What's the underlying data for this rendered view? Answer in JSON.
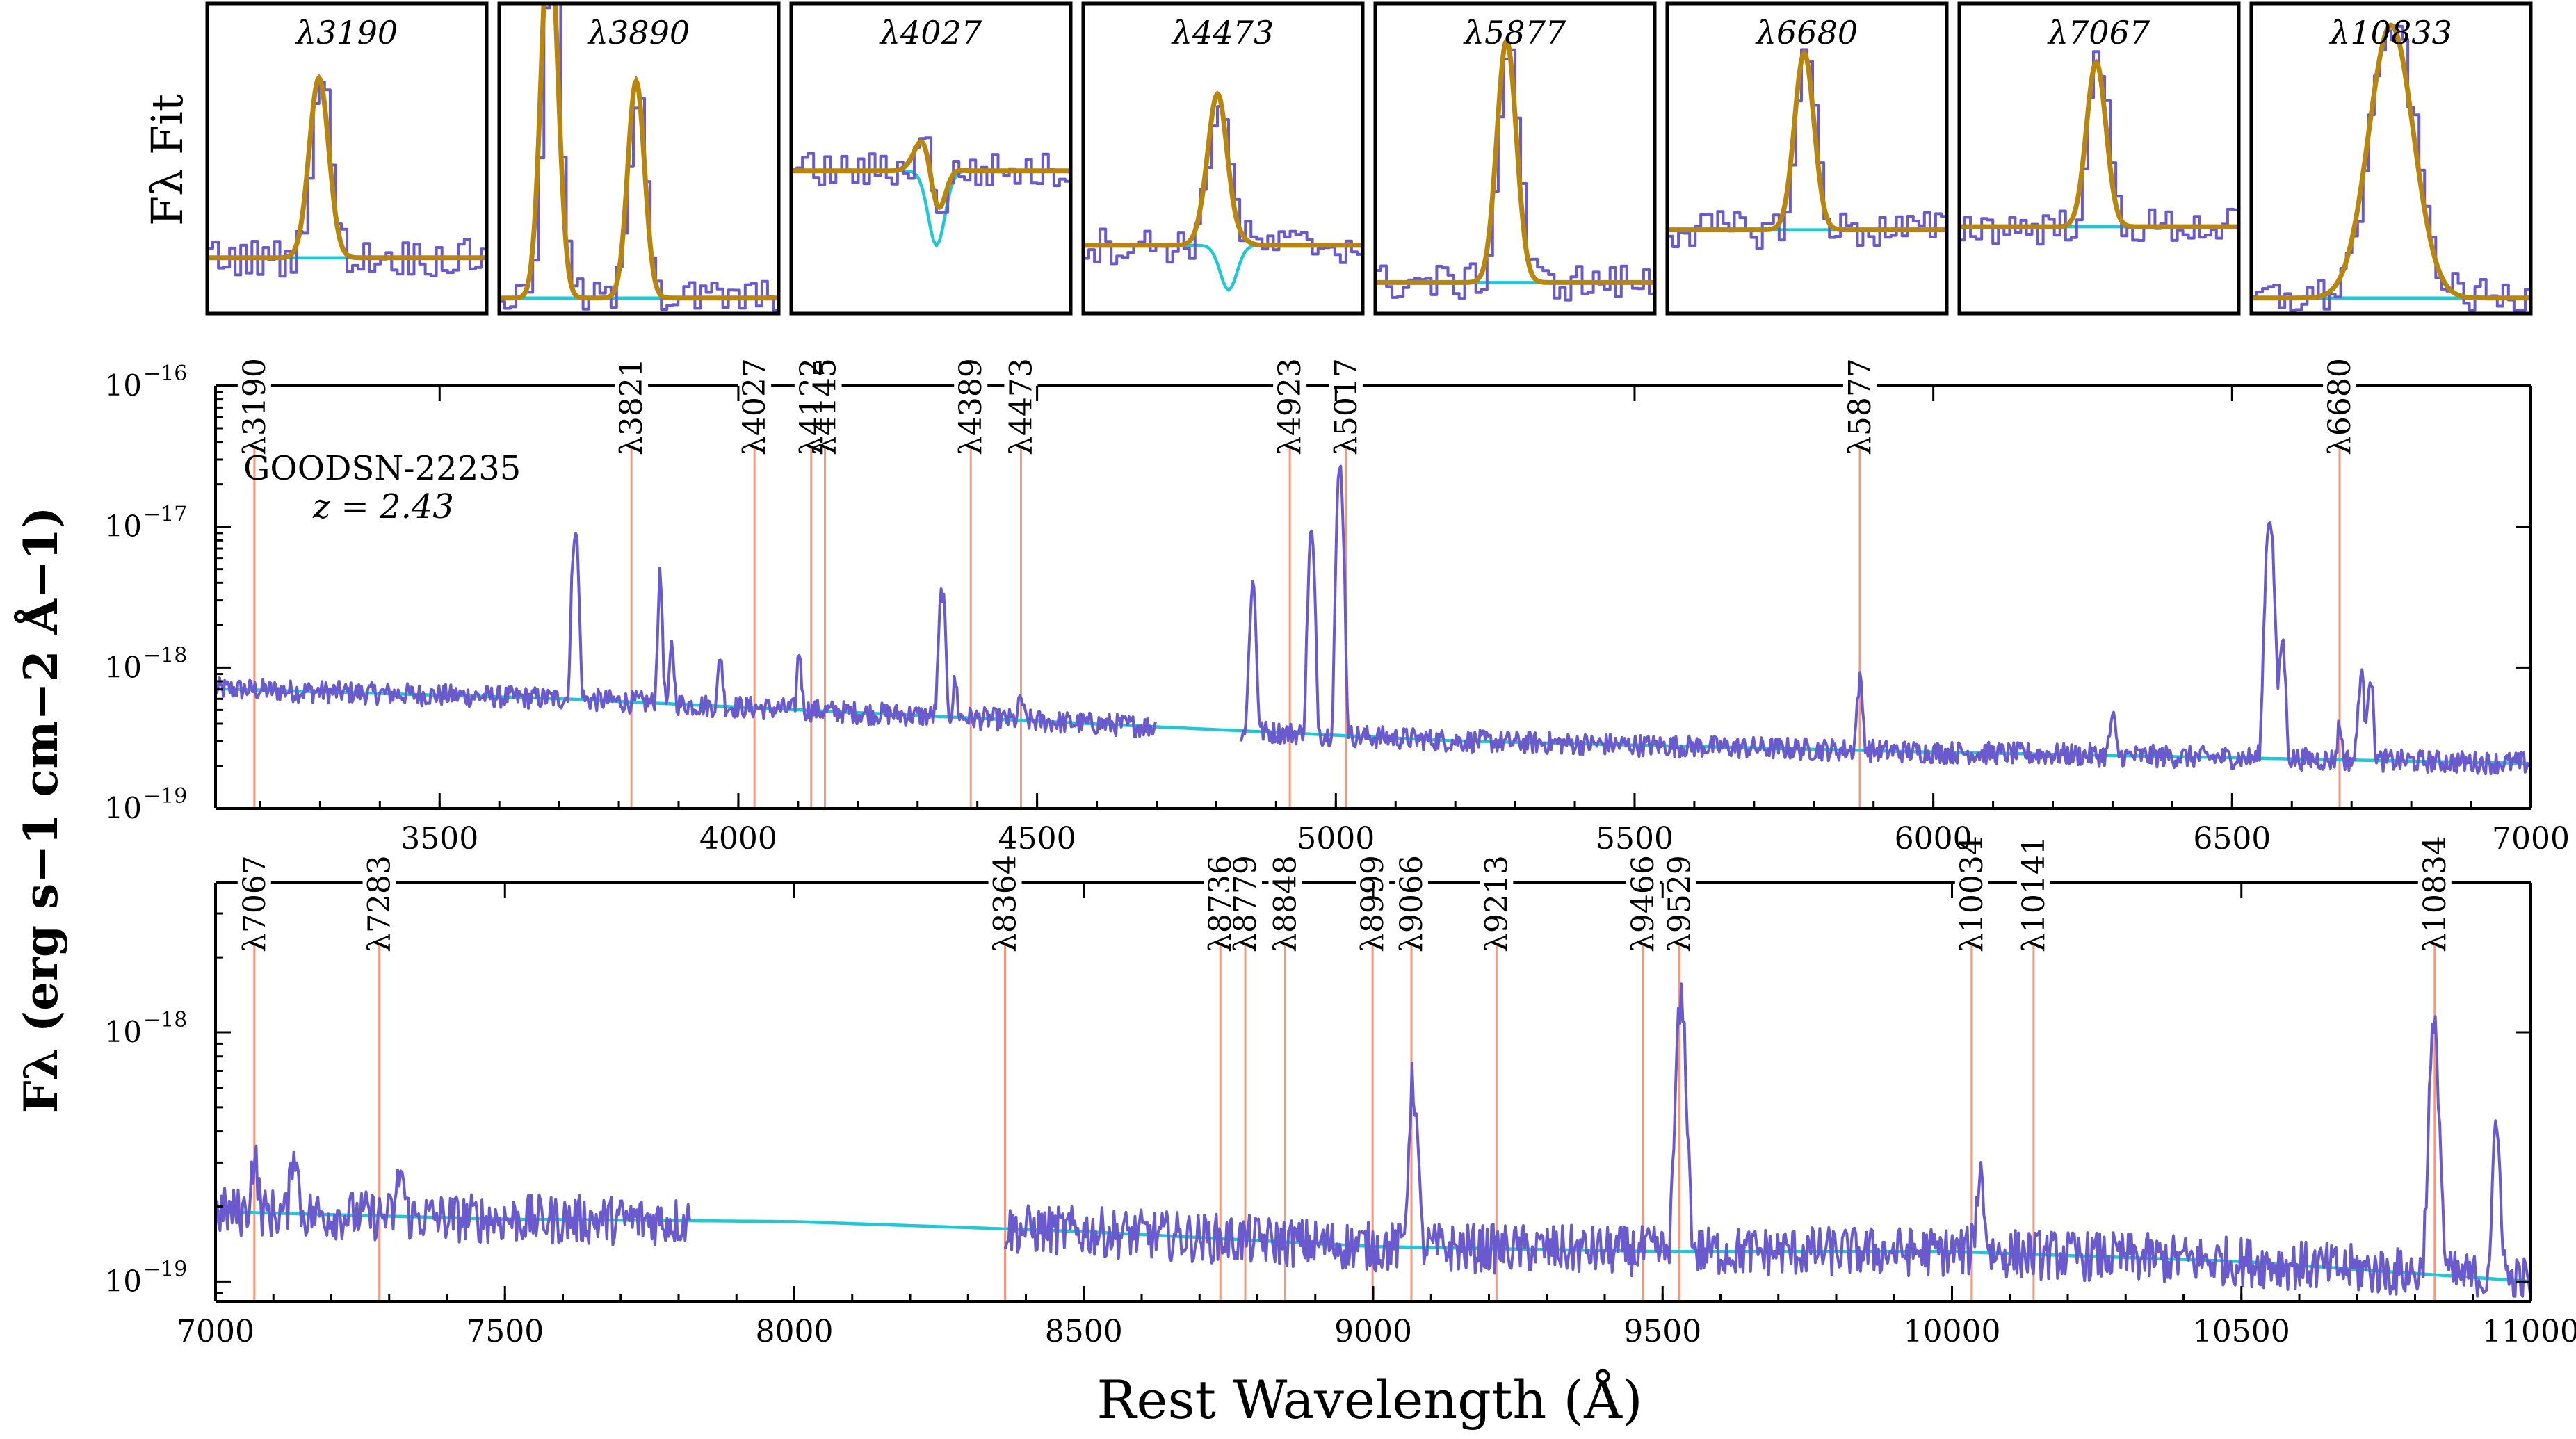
{
  "chart_data": {
    "type": "line",
    "object": "GOODSN-22235",
    "redshift_label": "z = 2.43",
    "colors": {
      "spectrum": "#6a5acd",
      "continuum": "#1fc8d4",
      "fit": "#b8860b",
      "line_markers": "#f4987a"
    },
    "insets": {
      "ylabel": "Fλ Fit",
      "panels": [
        {
          "label": "λ3190",
          "rest": 3190
        },
        {
          "label": "λ3890",
          "rest": 3890
        },
        {
          "label": "λ4027",
          "rest": 4027
        },
        {
          "label": "λ4473",
          "rest": 4473
        },
        {
          "label": "λ5877",
          "rest": 5877
        },
        {
          "label": "λ6680",
          "rest": 6680
        },
        {
          "label": "λ7067",
          "rest": 7067
        },
        {
          "label": "λ10833",
          "rest": 10833
        }
      ]
    },
    "panels": [
      {
        "xlim": [
          3125,
          7000
        ],
        "ylim_log10": [
          -19,
          -16
        ],
        "xticks": [
          3500,
          4000,
          4500,
          5000,
          5500,
          6000,
          6500,
          7000
        ],
        "yticks": [
          {
            "exp": -19,
            "label": "10−19"
          },
          {
            "exp": -18,
            "label": "10−18"
          },
          {
            "exp": -17,
            "label": "10−17"
          },
          {
            "exp": -16,
            "label": "10−16"
          }
        ],
        "line_markers": [
          3190,
          3821,
          4027,
          4122,
          4145,
          4389,
          4473,
          4923,
          5017,
          5877,
          6680
        ],
        "marker_labels": [
          "λ3190",
          "λ3821",
          "λ4027",
          "λ4122",
          "λ4145",
          "λ4389",
          "λ4473",
          "λ4923",
          "λ5017",
          "λ5877",
          "λ6680"
        ],
        "continuum": {
          "x": [
            3125,
            3700,
            4200,
            4700,
            5200,
            6000,
            6500,
            7000
          ],
          "log10": [
            -18.15,
            -18.22,
            -18.32,
            -18.42,
            -18.52,
            -18.6,
            -18.64,
            -18.68
          ]
        },
        "emission": [
          {
            "x": 3727,
            "log10": -17.0,
            "w": 4
          },
          {
            "x": 3869,
            "log10": -17.37,
            "w": 3
          },
          {
            "x": 3889,
            "log10": -17.85,
            "w": 3
          },
          {
            "x": 3970,
            "log10": -17.9,
            "w": 3
          },
          {
            "x": 4102,
            "log10": -17.88,
            "w": 3
          },
          {
            "x": 4341,
            "log10": -17.45,
            "w": 4
          },
          {
            "x": 4363,
            "log10": -18.1,
            "w": 3
          },
          {
            "x": 4473,
            "log10": -18.2,
            "w": 3
          },
          {
            "x": 4861,
            "log10": -17.4,
            "w": 4
          },
          {
            "x": 4959,
            "log10": -17.05,
            "w": 4
          },
          {
            "x": 5007,
            "log10": -16.58,
            "w": 4
          },
          {
            "x": 5877,
            "log10": -18.1,
            "w": 4
          },
          {
            "x": 6300,
            "log10": -18.35,
            "w": 4
          },
          {
            "x": 6563,
            "log10": -16.92,
            "w": 5
          },
          {
            "x": 6584,
            "log10": -17.8,
            "w": 4
          },
          {
            "x": 6680,
            "log10": -18.4,
            "w": 3
          },
          {
            "x": 6716,
            "log10": -18.05,
            "w": 4
          },
          {
            "x": 6731,
            "log10": -18.05,
            "w": 4
          }
        ],
        "gaps": [
          [
            4700,
            4840
          ]
        ]
      },
      {
        "xlim": [
          7000,
          11000
        ],
        "ylim_log10": [
          -19.08,
          -17.4
        ],
        "xticks": [
          7000,
          7500,
          8000,
          8500,
          9000,
          9500,
          10000,
          10500,
          11000
        ],
        "yticks": [
          {
            "exp": -19,
            "label": "10−19"
          },
          {
            "exp": -18,
            "label": "10−18"
          }
        ],
        "line_markers": [
          7067,
          7283,
          8364,
          8736,
          8779,
          8848,
          8999,
          9066,
          9213,
          9466,
          9529,
          10034,
          10141,
          10834
        ],
        "marker_labels": [
          "λ7067",
          "λ7283",
          "λ8364",
          "λ8736",
          "λ8779",
          "λ8848",
          "λ8999",
          "λ9066",
          "λ9213",
          "λ9466",
          "λ9529",
          "λ10034",
          "λ10141",
          "λ10834"
        ],
        "continuum": {
          "x": [
            7000,
            7500,
            8000,
            8500,
            9000,
            9500,
            10000,
            10500,
            11000
          ],
          "log10": [
            -18.72,
            -18.75,
            -18.76,
            -18.8,
            -18.86,
            -18.88,
            -18.88,
            -18.92,
            -19.0
          ]
        },
        "emission": [
          {
            "x": 7067,
            "log10": -18.5,
            "w": 5
          },
          {
            "x": 7136,
            "log10": -18.45,
            "w": 5
          },
          {
            "x": 7320,
            "log10": -18.55,
            "w": 5
          },
          {
            "x": 9069,
            "log10": -18.2,
            "w": 6
          },
          {
            "x": 9532,
            "log10": -17.9,
            "w": 7
          },
          {
            "x": 10049,
            "log10": -18.57,
            "w": 6
          },
          {
            "x": 10833,
            "log10": -18.01,
            "w": 7
          },
          {
            "x": 10941,
            "log10": -18.42,
            "w": 6
          }
        ],
        "gaps": [
          [
            7820,
            8360
          ]
        ]
      }
    ],
    "ylabel": "Fλ (erg s−1 cm−2 Å−1)",
    "xlabel": "Rest Wavelength (Å)"
  }
}
